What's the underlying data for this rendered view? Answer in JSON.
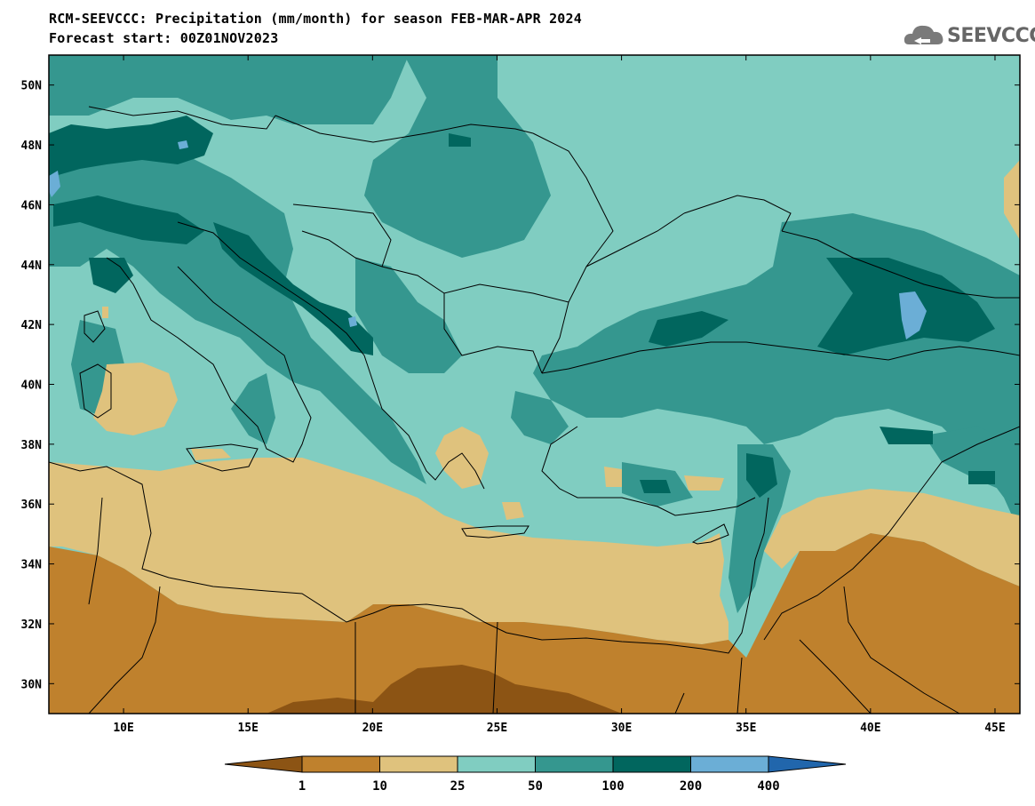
{
  "header": {
    "title_line1": "RCM-SEEVCCC: Precipitation (mm/month) for season FEB-MAR-APR 2024",
    "title_line2": "Forecast start: 00Z01NOV2023",
    "logo_text": "SEEVCCC"
  },
  "map": {
    "lon_range": [
      7,
      46
    ],
    "lat_range": [
      29,
      51
    ],
    "lon_ticks": [
      "10E",
      "15E",
      "20E",
      "25E",
      "30E",
      "35E",
      "40E",
      "45E"
    ],
    "lat_ticks": [
      "30N",
      "32N",
      "34N",
      "36N",
      "38N",
      "40N",
      "42N",
      "44N",
      "46N",
      "48N",
      "50N"
    ]
  },
  "colorbar": {
    "labels": [
      "1",
      "10",
      "25",
      "50",
      "100",
      "200",
      "400"
    ],
    "colors": [
      "#8c5414",
      "#bf812d",
      "#dfc27d",
      "#80cdc1",
      "#35978f",
      "#01665e",
      "#6baed6",
      "#2166ac"
    ]
  }
}
